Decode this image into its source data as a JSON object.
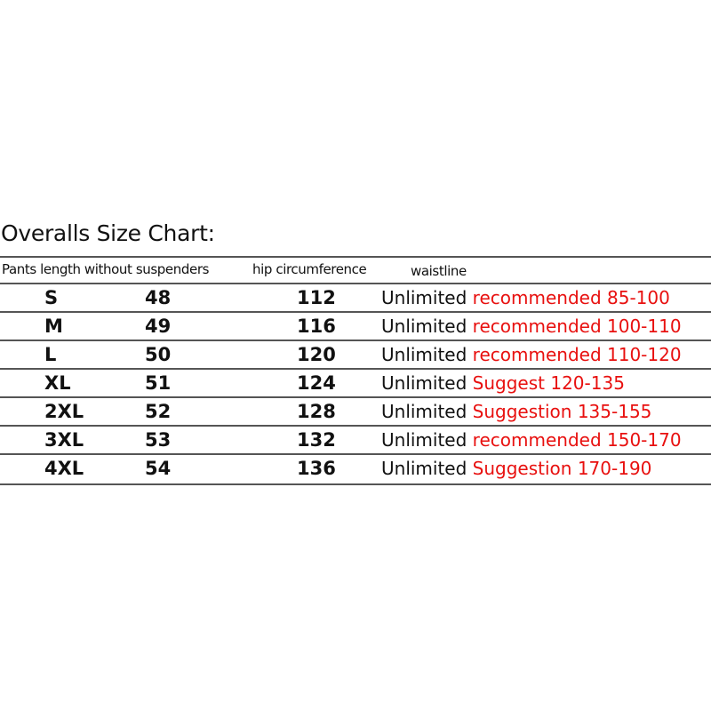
{
  "title": "Overalls Size Chart:",
  "headers": [
    "Pants length without suspenders",
    "hip circumference",
    "waistline"
  ],
  "rows": [
    {
      "size": "S",
      "length": "48",
      "hip": "112",
      "waist": "Unlimited",
      "note": "recommended 85-100"
    },
    {
      "size": "M",
      "length": "49",
      "hip": "116",
      "waist": "Unlimited",
      "note": "recommended 100-110"
    },
    {
      "size": "L",
      "length": "50",
      "hip": "120",
      "waist": "Unlimited",
      "note": "recommended 110-120"
    },
    {
      "size": "XL",
      "length": "51",
      "hip": "124",
      "waist": "Unlimited",
      "note": "Suggest 120-135"
    },
    {
      "size": "2XL",
      "length": "52",
      "hip": "128",
      "waist": "Unlimited",
      "note": "Suggestion 135-155"
    },
    {
      "size": "3XL",
      "length": "53",
      "hip": "132",
      "waist": "Unlimited",
      "note": "recommended 150-170"
    },
    {
      "size": "4XL",
      "length": "54",
      "hip": "136",
      "waist": "Unlimited",
      "note": "Suggestion 170-190"
    }
  ],
  "colors": {
    "note": "#e8100f",
    "text": "#111111",
    "rule": "#555555"
  }
}
